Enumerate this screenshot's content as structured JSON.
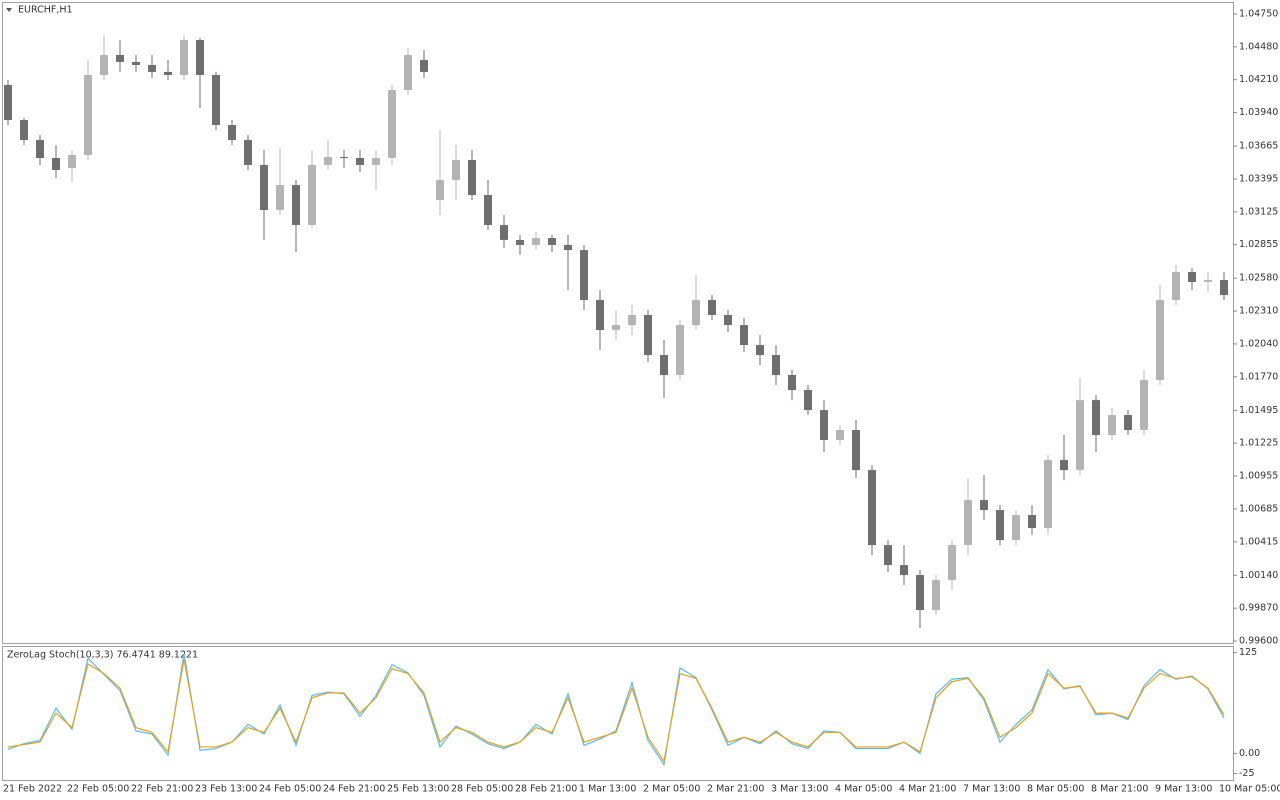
{
  "chart_data": [
    {
      "type": "candlestick",
      "title": "EURCHF,H1",
      "categories": [
        "21 Feb 2022",
        null,
        null,
        null,
        "22 Feb 05:00",
        null,
        null,
        null,
        "22 Feb 21:00",
        null,
        null,
        null,
        "23 Feb 13:00",
        null,
        null,
        null,
        "24 Feb 05:00",
        null,
        null,
        null,
        "24 Feb 21:00",
        null,
        null,
        null,
        "25 Feb 13:00",
        null,
        null,
        null,
        "28 Feb 05:00",
        null,
        null,
        null,
        "28 Feb 21:00",
        null,
        null,
        null,
        "1 Mar 13:00",
        null,
        null,
        null,
        "2 Mar 05:00",
        null,
        null,
        null,
        "2 Mar 21:00",
        null,
        null,
        null,
        "3 Mar 13:00",
        null,
        null,
        null,
        "4 Mar 05:00",
        null,
        null,
        null,
        "4 Mar 21:00",
        null,
        null,
        null,
        "7 Mar 13:00",
        null,
        null,
        null,
        "8 Mar 05:00",
        null,
        null,
        null,
        "8 Mar 21:00",
        null,
        null,
        null,
        "9 Mar 13:00",
        null,
        null,
        null,
        "10 Mar 05:00"
      ],
      "open": [
        1.04167,
        1.03879,
        1.03715,
        1.03567,
        1.03485,
        1.03592,
        1.04249,
        1.04413,
        1.04356,
        1.04331,
        1.04274,
        1.04249,
        1.04536,
        1.04249,
        1.03838,
        1.03715,
        1.0351,
        1.0314,
        1.03345,
        1.03017,
        1.0351,
        1.03575,
        1.03567,
        1.0351,
        1.03567,
        1.04126,
        1.04372,
        1.03222,
        1.03386,
        1.03551,
        1.03263,
        1.03017,
        1.02894,
        1.02853,
        1.0291,
        1.02853,
        1.02811,
        1.02401,
        1.02154,
        1.02195,
        1.02278,
        1.01949,
        1.01785,
        1.02195,
        1.02401,
        1.02278,
        1.02195,
        1.02031,
        1.01949,
        1.01785,
        1.01662,
        1.01497,
        1.01251,
        1.01333,
        1.01004,
        1.00388,
        1.00224,
        1.00142,
        0.99854,
        1.00101,
        1.00388,
        1.00758,
        1.00676,
        1.00429,
        1.00635,
        1.00528,
        1.01087,
        1.01004,
        1.01579,
        1.01292,
        1.01456,
        1.01333,
        1.01744,
        1.02401,
        1.02631,
        1.02549,
        1.02565
      ],
      "high": [
        1.04208,
        1.03896,
        1.03756,
        1.03674,
        1.03633,
        1.04372,
        1.04578,
        1.04536,
        1.04413,
        1.04413,
        1.04372,
        1.04578,
        1.04553,
        1.04274,
        1.03879,
        1.03756,
        1.03633,
        1.03649,
        1.03386,
        1.03633,
        1.03715,
        1.03633,
        1.03633,
        1.03633,
        1.04167,
        1.04471,
        1.04454,
        1.03797,
        1.03674,
        1.03633,
        1.03386,
        1.03099,
        1.02935,
        1.02959,
        1.02935,
        1.02935,
        1.02853,
        1.02483,
        1.02319,
        1.0236,
        1.02319,
        1.02072,
        1.02237,
        1.02606,
        1.02442,
        1.02319,
        1.02253,
        1.02113,
        1.02031,
        1.01826,
        1.01703,
        1.01579,
        1.01374,
        1.01415,
        1.01045,
        1.00429,
        1.00388,
        1.00183,
        1.00142,
        1.00429,
        1.00939,
        1.00963,
        1.00717,
        1.00676,
        1.00717,
        1.01128,
        1.01292,
        1.0176,
        1.0162,
        1.01514,
        1.01497,
        1.01826,
        1.02524,
        1.02688,
        1.02664,
        1.02631,
        1.02631
      ],
      "low": [
        1.03838,
        1.03674,
        1.0351,
        1.03403,
        1.0337,
        1.03551,
        1.04208,
        1.04274,
        1.04274,
        1.04224,
        1.04208,
        1.04208,
        1.03978,
        1.03797,
        1.03674,
        1.03469,
        1.02894,
        1.03099,
        1.02795,
        1.02992,
        1.03469,
        1.03485,
        1.03452,
        1.03304,
        1.0351,
        1.04085,
        1.04224,
        1.03099,
        1.03222,
        1.03222,
        1.02976,
        1.02828,
        1.0277,
        1.02811,
        1.02795,
        1.02483,
        1.02319,
        1.0199,
        1.02072,
        1.02113,
        1.01892,
        1.01596,
        1.01744,
        1.02154,
        1.02237,
        1.02138,
        1.01974,
        1.01867,
        1.01703,
        1.01579,
        1.01456,
        1.01152,
        1.0121,
        1.00939,
        1.00306,
        1.00167,
        1.0006,
        0.99707,
        0.99813,
        1.00019,
        1.00306,
        1.00594,
        1.00388,
        1.00388,
        1.00471,
        1.00471,
        1.00922,
        1.00963,
        1.01152,
        1.01251,
        1.01292,
        1.01292,
        1.01703,
        1.0236,
        1.02483,
        1.02467,
        1.02401
      ],
      "close": [
        1.03879,
        1.03715,
        1.03567,
        1.03469,
        1.03592,
        1.04249,
        1.04413,
        1.04356,
        1.04331,
        1.04274,
        1.04249,
        1.04536,
        1.04249,
        1.03838,
        1.03715,
        1.0351,
        1.0314,
        1.03345,
        1.03017,
        1.0351,
        1.03575,
        1.03567,
        1.0351,
        1.03567,
        1.04126,
        1.04413,
        1.04274,
        1.03386,
        1.03551,
        1.03263,
        1.03017,
        1.02894,
        1.02853,
        1.0291,
        1.02853,
        1.02811,
        1.02401,
        1.02154,
        1.02195,
        1.02278,
        1.01949,
        1.01785,
        1.02195,
        1.02401,
        1.02278,
        1.02195,
        1.02031,
        1.01949,
        1.01785,
        1.01662,
        1.01497,
        1.01251,
        1.01333,
        1.01004,
        1.00388,
        1.00224,
        1.00142,
        0.99854,
        1.00101,
        1.00388,
        1.00758,
        1.00676,
        1.00429,
        1.00635,
        1.00528,
        1.01087,
        1.01004,
        1.01579,
        1.01292,
        1.01456,
        1.01333,
        1.01744,
        1.02401,
        1.02631,
        1.02549,
        1.02565,
        1.02442
      ],
      "up_color": "#b4b4b4",
      "down_color": "#6e6e6e",
      "ylim": [
        0.99584,
        1.0484
      ],
      "yticks": [
        {
          "value": 1.0475,
          "label": "1.04750"
        },
        {
          "value": 1.0448,
          "label": "1.04480"
        },
        {
          "value": 1.0421,
          "label": "1.04210"
        },
        {
          "value": 1.0394,
          "label": "1.03940"
        },
        {
          "value": 1.03665,
          "label": "1.03665"
        },
        {
          "value": 1.03395,
          "label": "1.03395"
        },
        {
          "value": 1.03125,
          "label": "1.03125"
        },
        {
          "value": 1.02855,
          "label": "1.02855"
        },
        {
          "value": 1.0258,
          "label": "1.02580"
        },
        {
          "value": 1.0231,
          "label": "1.02310"
        },
        {
          "value": 1.0204,
          "label": "1.02040"
        },
        {
          "value": 1.0177,
          "label": "1.01770"
        },
        {
          "value": 1.01495,
          "label": "1.01495"
        },
        {
          "value": 1.01225,
          "label": "1.01225"
        },
        {
          "value": 1.00955,
          "label": "1.00955"
        },
        {
          "value": 1.00685,
          "label": "1.00685"
        },
        {
          "value": 1.00415,
          "label": "1.00415"
        },
        {
          "value": 1.0014,
          "label": "1.00140"
        },
        {
          "value": 0.9987,
          "label": "0.99870"
        },
        {
          "value": 0.996,
          "label": "0.99600"
        }
      ]
    },
    {
      "type": "line",
      "title": "ZeroLag Stoch(10,3,3) 76.4741 89.1221",
      "series": [
        {
          "color": "#5ab9f2",
          "values": [
            5,
            12,
            16,
            56,
            30,
            118,
            98,
            78,
            28,
            24,
            -2,
            124,
            4,
            6,
            14,
            36,
            24,
            60,
            10,
            72,
            76,
            74,
            46,
            72,
            110,
            100,
            72,
            8,
            34,
            24,
            12,
            6,
            14,
            36,
            24,
            74,
            10,
            18,
            28,
            88,
            16,
            -14,
            106,
            94,
            54,
            10,
            20,
            12,
            28,
            12,
            6,
            28,
            26,
            6,
            6,
            6,
            14,
            0,
            74,
            92,
            94,
            66,
            14,
            36,
            54,
            104,
            80,
            84,
            48,
            50,
            42,
            84,
            104,
            92,
            96,
            80,
            44
          ]
        },
        {
          "color": "#e6a11a",
          "values": [
            8,
            11,
            14,
            50,
            32,
            111,
            99,
            81,
            32,
            26,
            2,
            117,
            8,
            8,
            14,
            32,
            26,
            56,
            14,
            69,
            75,
            75,
            50,
            69,
            105,
            99,
            75,
            14,
            32,
            26,
            14,
            8,
            14,
            32,
            26,
            69,
            14,
            20,
            26,
            81,
            20,
            -10,
            99,
            93,
            56,
            14,
            20,
            14,
            26,
            14,
            8,
            26,
            26,
            8,
            8,
            8,
            14,
            2,
            69,
            89,
            93,
            69,
            20,
            32,
            50,
            99,
            81,
            83,
            50,
            50,
            44,
            81,
            99,
            93,
            95,
            81,
            48
          ]
        }
      ],
      "ylim": [
        -33,
        132
      ],
      "yticks": [
        125,
        {
          "value": 0,
          "label": "0.00"
        },
        -25
      ]
    }
  ]
}
